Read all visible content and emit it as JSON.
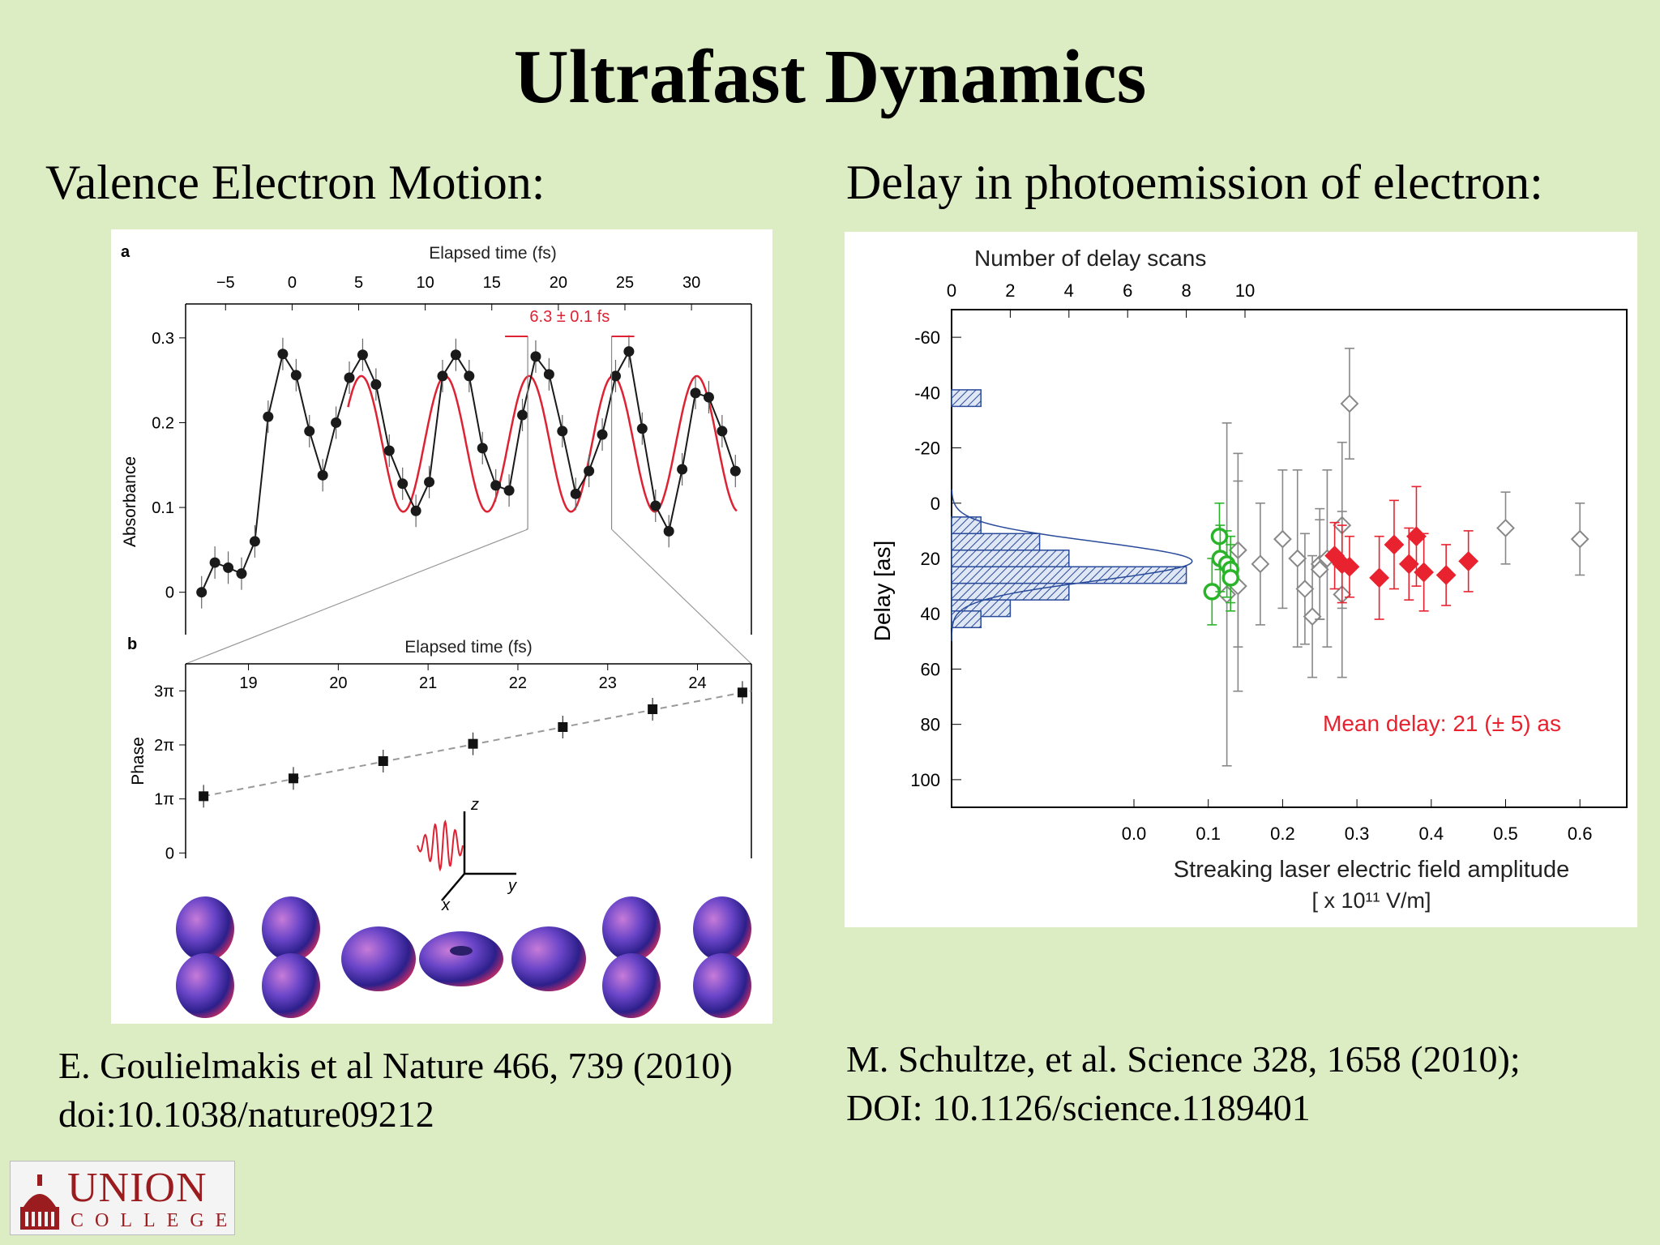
{
  "slide": {
    "title": "Ultrafast Dynamics",
    "left_heading": "Valence Electron Motion:",
    "right_heading": "Delay in photoemission of electron:",
    "left_reference": [
      "E. Goulielmakis et al Nature 466, 739 (2010)",
      "doi:10.1038/nature09212"
    ],
    "right_reference": [
      "M. Schultze, et al. Science 328, 1658 (2010);",
      "DOI: 10.1126/science.1189401"
    ],
    "logo": {
      "name": "UNION",
      "sub": "COLLEGE"
    }
  },
  "colors": {
    "background": "#dcedc4",
    "experiment": "#1a1a1a",
    "fit": "#dd2233",
    "histogram": "#2a4b9a",
    "green_points": "#2ab42a",
    "red_points": "#e8222e",
    "grey_points": "#888888",
    "logo": "#9b1c1f"
  },
  "chart_data": [
    {
      "panel_label": "a",
      "type": "line",
      "xlabel": "Elapsed time (fs)",
      "ylabel": "Absorbance",
      "xticks": [
        -5,
        0,
        5,
        10,
        15,
        20,
        25,
        30
      ],
      "yticks": [
        0,
        0.1,
        0.2,
        0.3
      ],
      "xlim": [
        -8,
        34.5
      ],
      "ylim": [
        -0.05,
        0.34
      ],
      "annotation": "6.3 ± 0.1 fs",
      "period_markers": [
        17.7,
        24.0
      ],
      "series": [
        {
          "role": "data",
          "x": [
            -6.8,
            -5.8,
            -4.8,
            -3.8,
            -2.8,
            -1.8,
            -0.7,
            0.3,
            1.3,
            2.3,
            3.3,
            4.3,
            5.3,
            6.3,
            7.3,
            8.3,
            9.3,
            10.3,
            11.3,
            12.3,
            13.3,
            14.3,
            15.3,
            16.3,
            17.3,
            18.3,
            19.3,
            20.3,
            21.3,
            22.3,
            23.3,
            24.3,
            25.3,
            26.3,
            27.3,
            28.3,
            29.3,
            30.3,
            31.3,
            32.3,
            33.3
          ],
          "y": [
            0.0,
            0.035,
            0.029,
            0.022,
            0.06,
            0.207,
            0.281,
            0.256,
            0.19,
            0.138,
            0.2,
            0.253,
            0.28,
            0.245,
            0.167,
            0.128,
            0.096,
            0.13,
            0.255,
            0.28,
            0.255,
            0.17,
            0.126,
            0.12,
            0.209,
            0.278,
            0.257,
            0.19,
            0.116,
            0.143,
            0.186,
            0.255,
            0.284,
            0.193,
            0.102,
            0.072,
            0.145,
            0.235,
            0.23,
            0.19,
            0.143
          ]
        },
        {
          "role": "fit",
          "amplitude": 0.08,
          "offset": 0.175,
          "period_fs": 6.3,
          "peak_fs": 17.8,
          "range": [
            4.2,
            33.5
          ]
        }
      ]
    },
    {
      "panel_label": "b",
      "type": "scatter",
      "xlabel": "Elapsed time (fs)",
      "ylabel": "Phase",
      "xticks": [
        19,
        20,
        21,
        22,
        23,
        24
      ],
      "yticks": [
        "0",
        "1π",
        "2π",
        "3π"
      ],
      "xlim": [
        18.3,
        24.6
      ],
      "ylim": [
        -0.1,
        3.5
      ],
      "x": [
        18.5,
        19.5,
        20.5,
        21.5,
        22.5,
        23.5,
        24.5
      ],
      "y": [
        1.05,
        1.38,
        1.7,
        2.02,
        2.33,
        2.66,
        2.97
      ],
      "axes_labels": [
        "z",
        "y",
        "x"
      ]
    },
    {
      "type": "scatter",
      "xlabel": "Streaking laser electric field amplitude",
      "xlabel_unit": "[ x 10¹¹ V/m]",
      "ylabel": "Delay [as]",
      "top_axis_label": "Number of delay scans",
      "top_ticks": [
        0,
        2,
        4,
        6,
        8,
        10
      ],
      "xticks": [
        0.0,
        0.1,
        0.2,
        0.3,
        0.4,
        0.5,
        0.6
      ],
      "yticks": [
        -60,
        -40,
        -20,
        0,
        20,
        40,
        60,
        80,
        100
      ],
      "ylim": [
        -70,
        110
      ],
      "annotation": "Mean delay: 21 (± 5) as",
      "histogram": {
        "bins_center": [
          -38,
          8,
          14,
          20,
          26,
          32,
          38,
          42
        ],
        "counts": [
          1,
          1,
          3,
          4,
          8,
          4,
          2,
          1
        ]
      },
      "series": [
        {
          "name": "green",
          "x": [
            0.105,
            0.115,
            0.116,
            0.125,
            0.13,
            0.13
          ],
          "y": [
            32,
            12,
            20,
            22,
            24,
            27
          ],
          "err": [
            12,
            12,
            12,
            12,
            12,
            12
          ]
        },
        {
          "name": "grey",
          "x": [
            0.125,
            0.14,
            0.14,
            0.17,
            0.2,
            0.22,
            0.23,
            0.24,
            0.25,
            0.25,
            0.26,
            0.28,
            0.28,
            0.29,
            0.5,
            0.6
          ],
          "y": [
            33,
            17,
            30,
            22,
            13,
            20,
            31,
            41,
            22,
            24,
            20,
            8,
            33,
            -36,
            9,
            13
          ],
          "err": [
            62,
            35,
            38,
            22,
            25,
            32,
            20,
            22,
            20,
            18,
            32,
            30,
            30,
            20,
            13,
            13
          ]
        },
        {
          "name": "red",
          "x": [
            0.27,
            0.28,
            0.29,
            0.33,
            0.35,
            0.37,
            0.38,
            0.39,
            0.42,
            0.45
          ],
          "y": [
            19,
            22,
            23,
            27,
            15,
            22,
            12,
            25,
            26,
            21
          ],
          "err": [
            12,
            14,
            11,
            15,
            16,
            13,
            18,
            14,
            11,
            11
          ]
        }
      ]
    }
  ]
}
